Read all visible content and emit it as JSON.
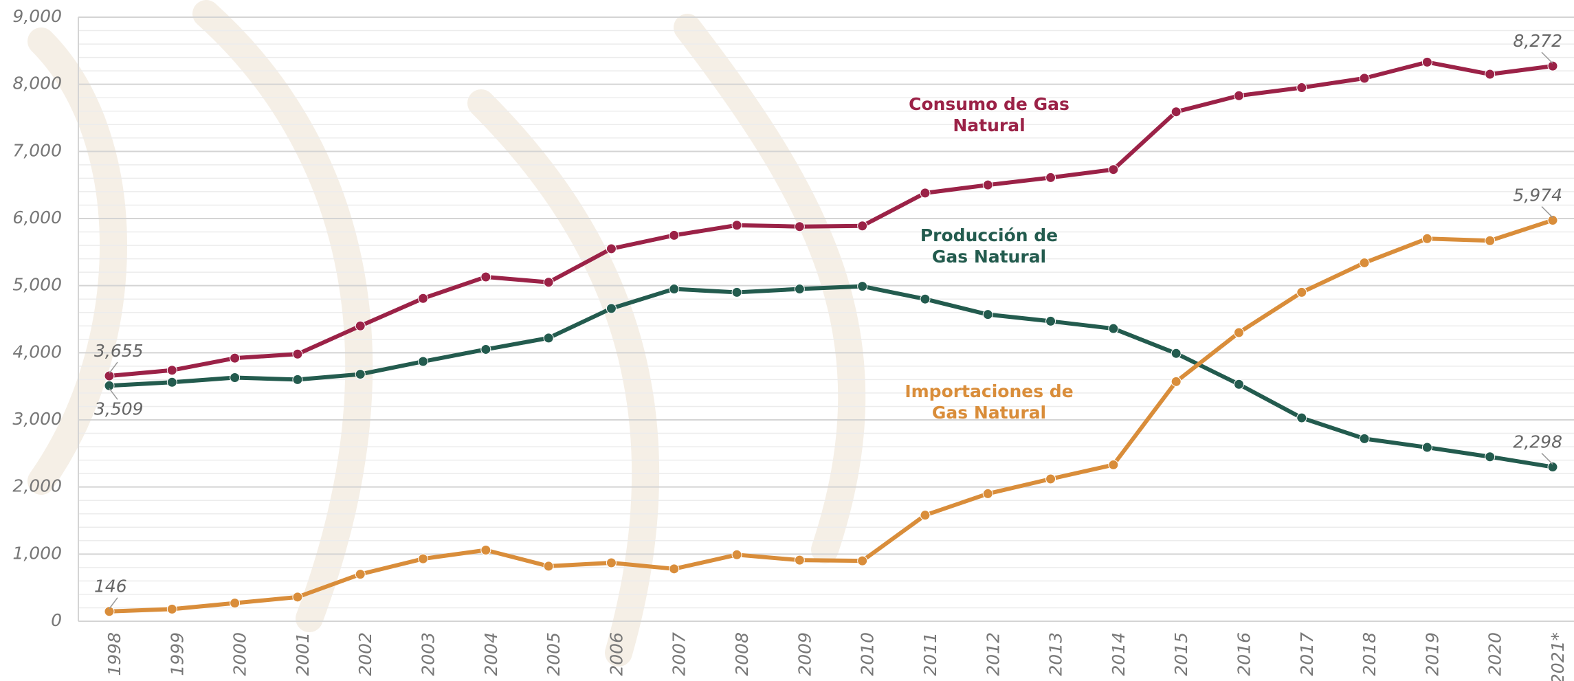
{
  "chart_data": {
    "type": "line",
    "x": [
      1998,
      1999,
      2000,
      2001,
      2002,
      2003,
      2004,
      2005,
      2006,
      2007,
      2008,
      2009,
      2010,
      2011,
      2012,
      2013,
      2014,
      2015,
      2016,
      2017,
      2018,
      2019,
      2020,
      {
        "value": 2021,
        "label": "2021*"
      }
    ],
    "xlim": [
      1998,
      2021
    ],
    "ylim": [
      0,
      9000
    ],
    "yticks": [
      0,
      {
        "value": 1000,
        "label": "1,000"
      },
      {
        "value": 2000,
        "label": "2,000"
      },
      {
        "value": 3000,
        "label": "3,000"
      },
      {
        "value": 4000,
        "label": "4,000"
      },
      {
        "value": 5000,
        "label": "5,000"
      },
      {
        "value": 6000,
        "label": "6,000"
      },
      {
        "value": 7000,
        "label": "7,000"
      },
      {
        "value": 8000,
        "label": "8,000"
      },
      {
        "value": 9000,
        "label": "9,000"
      }
    ],
    "grid": true,
    "series": [
      {
        "name": "Consumo de Gas Natural",
        "color": "#9b2247",
        "values": [
          3655,
          3740,
          3920,
          3980,
          4400,
          4810,
          5130,
          5050,
          5550,
          5750,
          5900,
          5880,
          5890,
          6380,
          6500,
          6610,
          6730,
          7590,
          7830,
          7950,
          8090,
          8330,
          8150,
          8272
        ],
        "value_labels": [
          "3,655",
          null,
          null,
          null,
          null,
          null,
          null,
          null,
          null,
          null,
          null,
          null,
          null,
          null,
          null,
          null,
          null,
          null,
          null,
          null,
          null,
          null,
          null,
          "8,272"
        ]
      },
      {
        "name": "Producción de Gas Natural",
        "color": "#235b4e",
        "values": [
          3509,
          3560,
          3630,
          3600,
          3680,
          3870,
          4050,
          4220,
          4660,
          4950,
          4900,
          4950,
          4990,
          4800,
          4570,
          4470,
          4360,
          3990,
          3530,
          3030,
          2720,
          2590,
          2450,
          2298
        ],
        "value_labels": [
          "3,509",
          null,
          null,
          null,
          null,
          null,
          null,
          null,
          null,
          null,
          null,
          null,
          null,
          null,
          null,
          null,
          null,
          null,
          null,
          null,
          null,
          null,
          null,
          "2,298"
        ]
      },
      {
        "name": "Importaciones de Gas Natural",
        "color": "#d98d3a",
        "values": [
          146,
          180,
          270,
          360,
          700,
          930,
          1060,
          820,
          870,
          780,
          990,
          910,
          900,
          1580,
          1900,
          2120,
          2330,
          3570,
          4300,
          4900,
          5340,
          5700,
          5670,
          5974
        ],
        "value_labels": [
          "146",
          null,
          null,
          null,
          null,
          null,
          null,
          null,
          null,
          null,
          null,
          null,
          null,
          null,
          null,
          null,
          null,
          null,
          null,
          null,
          null,
          null,
          null,
          "5,974"
        ]
      }
    ]
  }
}
